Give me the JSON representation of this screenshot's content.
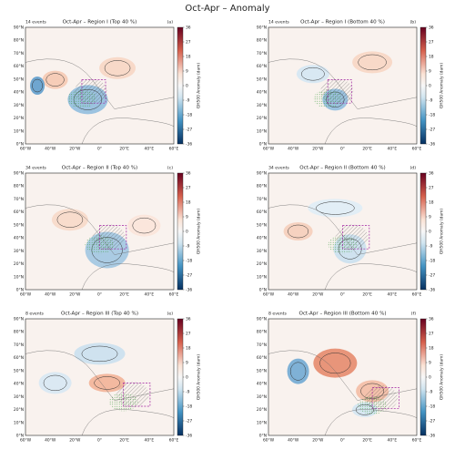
{
  "title": "Oct-Apr – Anomaly",
  "lat_ticks": [
    "0°N",
    "10°N",
    "20°N",
    "30°N",
    "40°N",
    "50°N",
    "60°N",
    "70°N",
    "80°N",
    "90°N"
  ],
  "lon_ticks": [
    "60°W",
    "40°W",
    "20°W",
    "0°",
    "20°E",
    "40°E",
    "60°E"
  ],
  "colorbar_ticks": [
    36,
    27,
    18,
    9,
    0,
    -9,
    -18,
    -27,
    -36
  ],
  "colorbar_label": "GH500 Anomaly (dam)",
  "panels": [
    {
      "events": "14 events",
      "title": "Oct-Apr – Region I (Top 40 %)",
      "letter": "(a)"
    },
    {
      "events": "14 events",
      "title": "Oct-Apr – Region I (Bottom 40 %)",
      "letter": "(b)"
    },
    {
      "events": "34 events",
      "title": "Oct-Apr – Region II (Top 40 %)",
      "letter": "(c)"
    },
    {
      "events": "34 events",
      "title": "Oct-Apr – Region II (Bottom 40 %)",
      "letter": "(d)"
    },
    {
      "events": "8 events",
      "title": "Oct-Apr – Region III (Top 40 %)",
      "letter": "(e)"
    },
    {
      "events": "8 events",
      "title": "Oct-Apr – Region III (Bottom 40 %)",
      "letter": "(f)"
    }
  ]
}
